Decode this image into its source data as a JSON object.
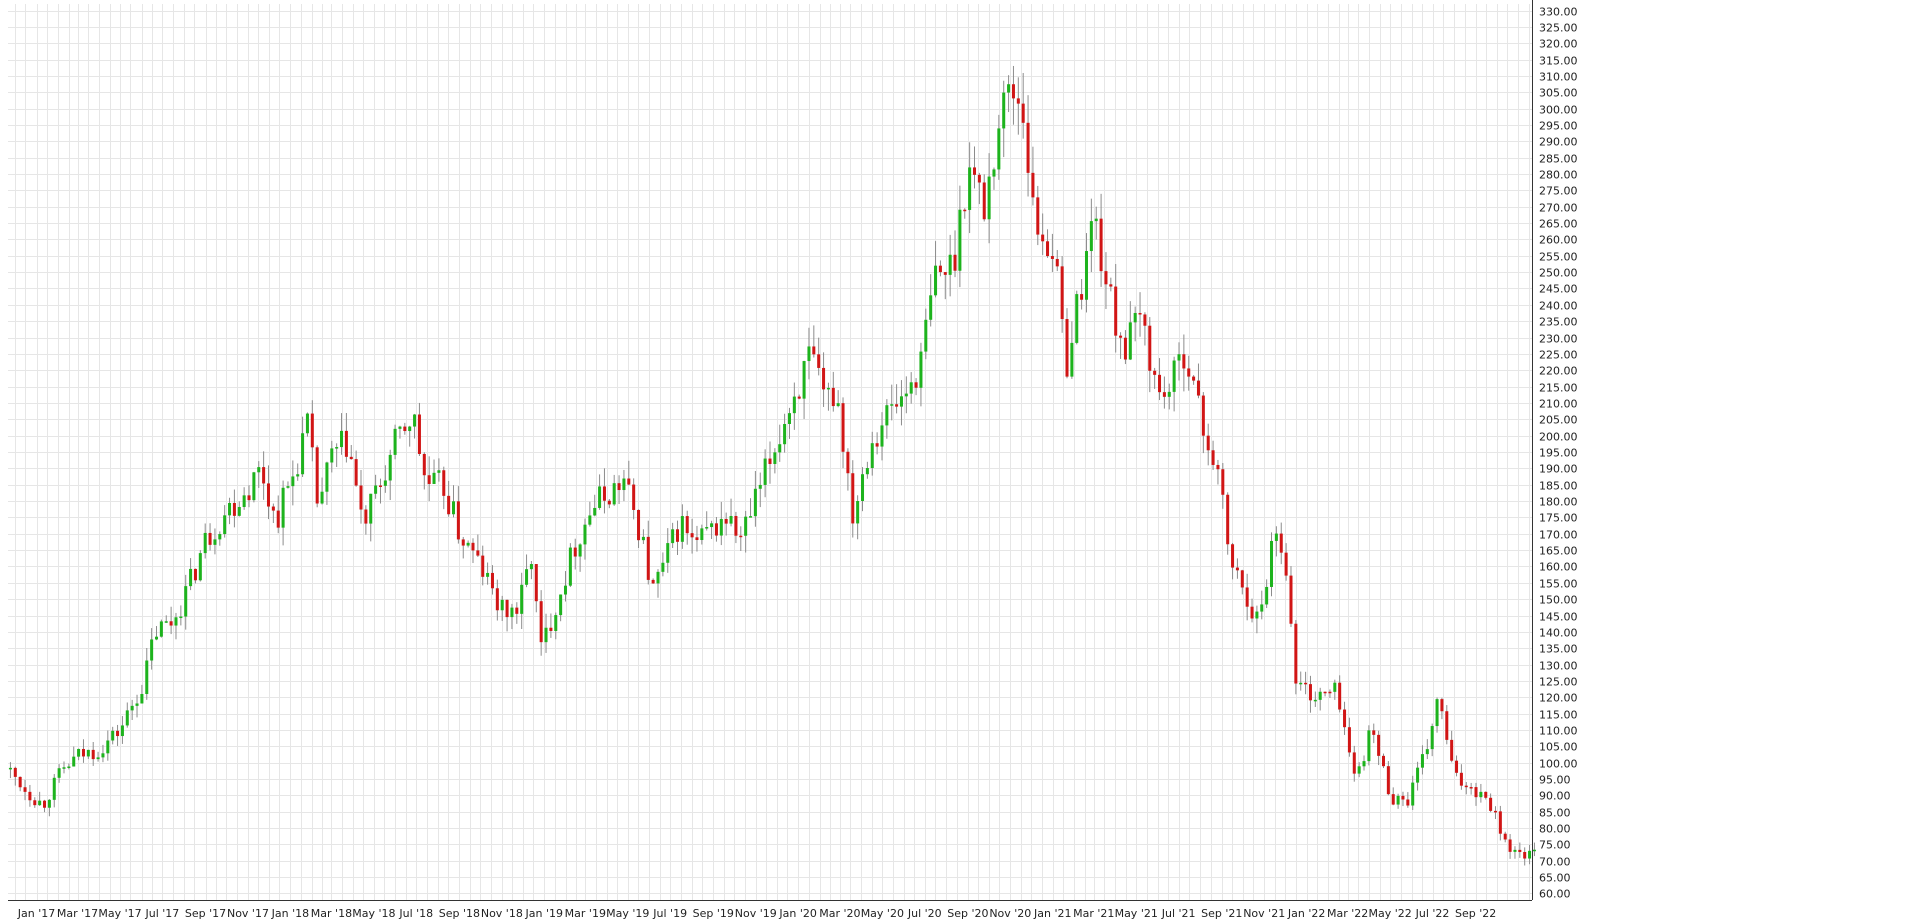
{
  "chart_data": {
    "type": "candlestick",
    "title": "",
    "xlabel": "",
    "ylabel": "",
    "ylim": [
      58,
      332
    ],
    "y_ticks": [
      "60.00",
      "65.00",
      "70.00",
      "75.00",
      "80.00",
      "85.00",
      "90.00",
      "95.00",
      "100.00",
      "105.00",
      "110.00",
      "115.00",
      "120.00",
      "125.00",
      "130.00",
      "135.00",
      "140.00",
      "145.00",
      "150.00",
      "155.00",
      "160.00",
      "165.00",
      "170.00",
      "175.00",
      "180.00",
      "185.00",
      "190.00",
      "195.00",
      "200.00",
      "205.00",
      "210.00",
      "215.00",
      "220.00",
      "225.00",
      "230.00",
      "235.00",
      "240.00",
      "245.00",
      "250.00",
      "255.00",
      "260.00",
      "265.00",
      "270.00",
      "275.00",
      "280.00",
      "285.00",
      "290.00",
      "295.00",
      "300.00",
      "305.00",
      "310.00",
      "315.00",
      "320.00",
      "325.00",
      "330.00"
    ],
    "x_range": [
      "2016-11-21",
      "2022-11-21"
    ],
    "x_ticks": [
      {
        "date": "2017-01-01",
        "label": "Jan '17"
      },
      {
        "date": "2017-03-01",
        "label": "Mar '17"
      },
      {
        "date": "2017-05-01",
        "label": "May '17"
      },
      {
        "date": "2017-07-01",
        "label": "Jul '17"
      },
      {
        "date": "2017-09-01",
        "label": "Sep '17"
      },
      {
        "date": "2017-11-01",
        "label": "Nov '17"
      },
      {
        "date": "2018-01-01",
        "label": "Jan '18"
      },
      {
        "date": "2018-03-01",
        "label": "Mar '18"
      },
      {
        "date": "2018-05-01",
        "label": "May '18"
      },
      {
        "date": "2018-07-01",
        "label": "Jul '18"
      },
      {
        "date": "2018-09-01",
        "label": "Sep '18"
      },
      {
        "date": "2018-11-01",
        "label": "Nov '18"
      },
      {
        "date": "2019-01-01",
        "label": "Jan '19"
      },
      {
        "date": "2019-03-01",
        "label": "Mar '19"
      },
      {
        "date": "2019-05-01",
        "label": "May '19"
      },
      {
        "date": "2019-07-01",
        "label": "Jul '19"
      },
      {
        "date": "2019-09-01",
        "label": "Sep '19"
      },
      {
        "date": "2019-11-01",
        "label": "Nov '19"
      },
      {
        "date": "2020-01-01",
        "label": "Jan '20"
      },
      {
        "date": "2020-03-01",
        "label": "Mar '20"
      },
      {
        "date": "2020-05-01",
        "label": "May '20"
      },
      {
        "date": "2020-07-01",
        "label": "Jul '20"
      },
      {
        "date": "2020-09-01",
        "label": "Sep '20"
      },
      {
        "date": "2020-11-01",
        "label": "Nov '20"
      },
      {
        "date": "2021-01-01",
        "label": "Jan '21"
      },
      {
        "date": "2021-03-01",
        "label": "Mar '21"
      },
      {
        "date": "2021-05-01",
        "label": "May '21"
      },
      {
        "date": "2021-07-01",
        "label": "Jul '21"
      },
      {
        "date": "2021-09-01",
        "label": "Sep '21"
      },
      {
        "date": "2021-11-01",
        "label": "Nov '21"
      },
      {
        "date": "2022-01-01",
        "label": "Jan '22"
      },
      {
        "date": "2022-03-01",
        "label": "Mar '22"
      },
      {
        "date": "2022-05-01",
        "label": "May '22"
      },
      {
        "date": "2022-07-01",
        "label": "Jul '22"
      },
      {
        "date": "2022-09-01",
        "label": "Sep '22"
      }
    ],
    "grid": true,
    "colors": {
      "up": "#1db31d",
      "down": "#d11515",
      "grid": "#e6e6e6",
      "wick": "#8c8c8c"
    },
    "anchors": [
      {
        "date": "2016-11-21",
        "price": 98
      },
      {
        "date": "2016-12-20",
        "price": 91
      },
      {
        "date": "2017-01-10",
        "price": 87
      },
      {
        "date": "2017-02-05",
        "price": 97
      },
      {
        "date": "2017-03-01",
        "price": 102
      },
      {
        "date": "2017-04-01",
        "price": 104
      },
      {
        "date": "2017-05-01",
        "price": 110
      },
      {
        "date": "2017-06-05",
        "price": 125
      },
      {
        "date": "2017-06-20",
        "price": 140
      },
      {
        "date": "2017-07-15",
        "price": 143
      },
      {
        "date": "2017-08-10",
        "price": 155
      },
      {
        "date": "2017-09-01",
        "price": 168
      },
      {
        "date": "2017-10-01",
        "price": 177
      },
      {
        "date": "2017-11-01",
        "price": 184
      },
      {
        "date": "2017-11-20",
        "price": 190
      },
      {
        "date": "2017-12-10",
        "price": 174
      },
      {
        "date": "2018-01-05",
        "price": 188
      },
      {
        "date": "2018-01-25",
        "price": 203
      },
      {
        "date": "2018-02-10",
        "price": 178
      },
      {
        "date": "2018-03-01",
        "price": 193
      },
      {
        "date": "2018-03-25",
        "price": 198
      },
      {
        "date": "2018-04-15",
        "price": 172
      },
      {
        "date": "2018-05-10",
        "price": 185
      },
      {
        "date": "2018-06-01",
        "price": 197
      },
      {
        "date": "2018-06-25",
        "price": 207
      },
      {
        "date": "2018-07-15",
        "price": 185
      },
      {
        "date": "2018-08-10",
        "price": 184
      },
      {
        "date": "2018-09-01",
        "price": 170
      },
      {
        "date": "2018-10-01",
        "price": 160
      },
      {
        "date": "2018-11-01",
        "price": 146
      },
      {
        "date": "2018-11-25",
        "price": 147
      },
      {
        "date": "2018-12-15",
        "price": 165
      },
      {
        "date": "2018-12-25",
        "price": 133
      },
      {
        "date": "2019-01-20",
        "price": 150
      },
      {
        "date": "2019-02-15",
        "price": 167
      },
      {
        "date": "2019-03-10",
        "price": 178
      },
      {
        "date": "2019-04-01",
        "price": 182
      },
      {
        "date": "2019-04-25",
        "price": 186
      },
      {
        "date": "2019-05-20",
        "price": 170
      },
      {
        "date": "2019-06-05",
        "price": 152
      },
      {
        "date": "2019-06-25",
        "price": 162
      },
      {
        "date": "2019-07-15",
        "price": 174
      },
      {
        "date": "2019-08-05",
        "price": 166
      },
      {
        "date": "2019-08-25",
        "price": 170
      },
      {
        "date": "2019-09-20",
        "price": 175
      },
      {
        "date": "2019-10-10",
        "price": 168
      },
      {
        "date": "2019-11-01",
        "price": 180
      },
      {
        "date": "2019-12-01",
        "price": 198
      },
      {
        "date": "2019-12-25",
        "price": 212
      },
      {
        "date": "2020-01-20",
        "price": 224
      },
      {
        "date": "2020-02-05",
        "price": 210
      },
      {
        "date": "2020-02-25",
        "price": 214
      },
      {
        "date": "2020-03-20",
        "price": 176
      },
      {
        "date": "2020-04-10",
        "price": 196
      },
      {
        "date": "2020-05-01",
        "price": 205
      },
      {
        "date": "2020-06-01",
        "price": 212
      },
      {
        "date": "2020-06-25",
        "price": 222
      },
      {
        "date": "2020-07-15",
        "price": 248
      },
      {
        "date": "2020-08-10",
        "price": 252
      },
      {
        "date": "2020-09-01",
        "price": 283
      },
      {
        "date": "2020-09-25",
        "price": 270
      },
      {
        "date": "2020-10-15",
        "price": 295
      },
      {
        "date": "2020-11-01",
        "price": 308
      },
      {
        "date": "2020-11-20",
        "price": 300
      },
      {
        "date": "2020-12-05",
        "price": 265
      },
      {
        "date": "2021-01-01",
        "price": 258
      },
      {
        "date": "2021-01-20",
        "price": 222
      },
      {
        "date": "2021-02-10",
        "price": 245
      },
      {
        "date": "2021-03-01",
        "price": 268
      },
      {
        "date": "2021-03-25",
        "price": 240
      },
      {
        "date": "2021-04-15",
        "price": 227
      },
      {
        "date": "2021-05-10",
        "price": 236
      },
      {
        "date": "2021-06-01",
        "price": 212
      },
      {
        "date": "2021-06-25",
        "price": 217
      },
      {
        "date": "2021-07-10",
        "price": 228
      },
      {
        "date": "2021-08-01",
        "price": 205
      },
      {
        "date": "2021-08-25",
        "price": 190
      },
      {
        "date": "2021-09-15",
        "price": 160
      },
      {
        "date": "2021-10-10",
        "price": 150
      },
      {
        "date": "2021-10-25",
        "price": 142
      },
      {
        "date": "2021-11-15",
        "price": 172
      },
      {
        "date": "2021-12-01",
        "price": 165
      },
      {
        "date": "2021-12-15",
        "price": 125
      },
      {
        "date": "2022-01-15",
        "price": 120
      },
      {
        "date": "2022-02-15",
        "price": 122
      },
      {
        "date": "2022-03-10",
        "price": 95
      },
      {
        "date": "2022-04-05",
        "price": 110
      },
      {
        "date": "2022-05-01",
        "price": 90
      },
      {
        "date": "2022-05-25",
        "price": 88
      },
      {
        "date": "2022-06-20",
        "price": 102
      },
      {
        "date": "2022-07-10",
        "price": 120
      },
      {
        "date": "2022-08-01",
        "price": 95
      },
      {
        "date": "2022-08-25",
        "price": 93
      },
      {
        "date": "2022-09-20",
        "price": 89
      },
      {
        "date": "2022-10-10",
        "price": 78
      },
      {
        "date": "2022-10-25",
        "price": 72
      }
    ]
  }
}
